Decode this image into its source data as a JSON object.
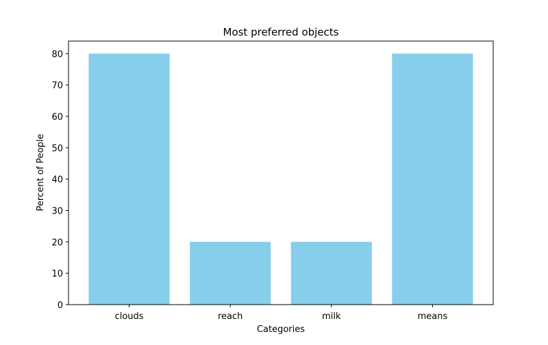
{
  "chart_data": {
    "type": "bar",
    "title": "Most preferred objects",
    "xlabel": "Categories",
    "ylabel": "Percent of People",
    "categories": [
      "clouds",
      "reach",
      "milk",
      "means"
    ],
    "values": [
      80,
      20,
      20,
      80
    ],
    "ylim": [
      0,
      84
    ],
    "yticks": [
      0,
      10,
      20,
      30,
      40,
      50,
      60,
      70,
      80
    ],
    "grid": false,
    "bar_color": "#87ceeb"
  }
}
